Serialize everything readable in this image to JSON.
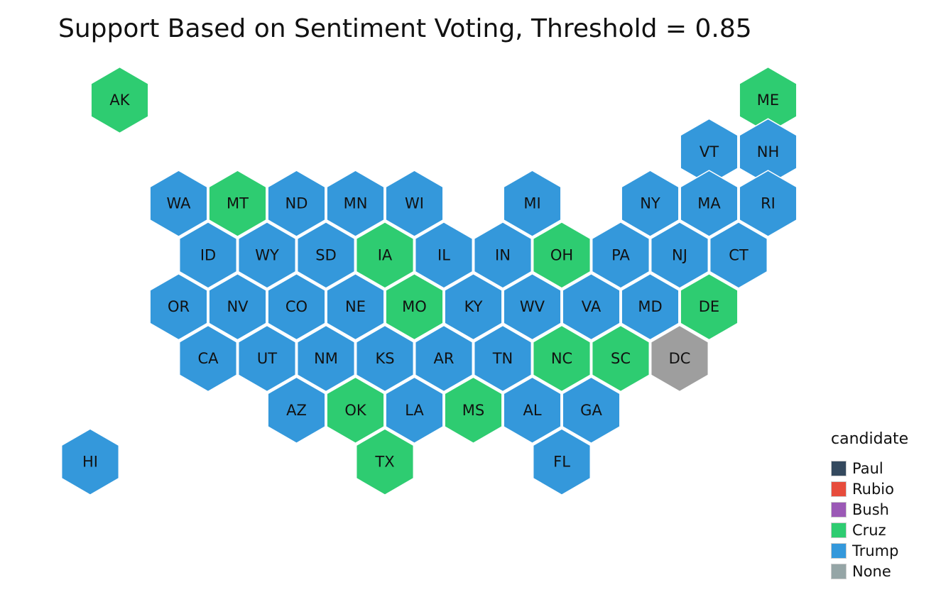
{
  "title": "Support Based on Sentiment Voting, Threshold = 0.85",
  "legend": {
    "title": "candidate",
    "items": [
      {
        "label": "Paul",
        "color": "#34495e"
      },
      {
        "label": "Rubio",
        "color": "#e74c3c"
      },
      {
        "label": "Bush",
        "color": "#9b59b6"
      },
      {
        "label": "Cruz",
        "color": "#2ecc71"
      },
      {
        "label": "Trump",
        "color": "#3498db"
      },
      {
        "label": "None",
        "color": "#95a5a6"
      }
    ]
  },
  "colors": {
    "Cruz": "#2ecc71",
    "Trump": "#3498db",
    "None": "#9e9e9e"
  },
  "states": [
    {
      "abbr": "AK",
      "candidate": "Cruz"
    },
    {
      "abbr": "ME",
      "candidate": "Cruz"
    },
    {
      "abbr": "VT",
      "candidate": "Trump"
    },
    {
      "abbr": "NH",
      "candidate": "Trump"
    },
    {
      "abbr": "WA",
      "candidate": "Trump"
    },
    {
      "abbr": "MT",
      "candidate": "Cruz"
    },
    {
      "abbr": "ND",
      "candidate": "Trump"
    },
    {
      "abbr": "MN",
      "candidate": "Trump"
    },
    {
      "abbr": "WI",
      "candidate": "Trump"
    },
    {
      "abbr": "MI",
      "candidate": "Trump"
    },
    {
      "abbr": "NY",
      "candidate": "Trump"
    },
    {
      "abbr": "MA",
      "candidate": "Trump"
    },
    {
      "abbr": "RI",
      "candidate": "Trump"
    },
    {
      "abbr": "ID",
      "candidate": "Trump"
    },
    {
      "abbr": "WY",
      "candidate": "Trump"
    },
    {
      "abbr": "SD",
      "candidate": "Trump"
    },
    {
      "abbr": "IA",
      "candidate": "Cruz"
    },
    {
      "abbr": "IL",
      "candidate": "Trump"
    },
    {
      "abbr": "IN",
      "candidate": "Trump"
    },
    {
      "abbr": "OH",
      "candidate": "Cruz"
    },
    {
      "abbr": "PA",
      "candidate": "Trump"
    },
    {
      "abbr": "NJ",
      "candidate": "Trump"
    },
    {
      "abbr": "CT",
      "candidate": "Trump"
    },
    {
      "abbr": "OR",
      "candidate": "Trump"
    },
    {
      "abbr": "NV",
      "candidate": "Trump"
    },
    {
      "abbr": "CO",
      "candidate": "Trump"
    },
    {
      "abbr": "NE",
      "candidate": "Trump"
    },
    {
      "abbr": "MO",
      "candidate": "Cruz"
    },
    {
      "abbr": "KY",
      "candidate": "Trump"
    },
    {
      "abbr": "WV",
      "candidate": "Trump"
    },
    {
      "abbr": "VA",
      "candidate": "Trump"
    },
    {
      "abbr": "MD",
      "candidate": "Trump"
    },
    {
      "abbr": "DE",
      "candidate": "Cruz"
    },
    {
      "abbr": "CA",
      "candidate": "Trump"
    },
    {
      "abbr": "UT",
      "candidate": "Trump"
    },
    {
      "abbr": "NM",
      "candidate": "Trump"
    },
    {
      "abbr": "KS",
      "candidate": "Trump"
    },
    {
      "abbr": "AR",
      "candidate": "Trump"
    },
    {
      "abbr": "TN",
      "candidate": "Trump"
    },
    {
      "abbr": "NC",
      "candidate": "Cruz"
    },
    {
      "abbr": "SC",
      "candidate": "Cruz"
    },
    {
      "abbr": "DC",
      "candidate": "None"
    },
    {
      "abbr": "AZ",
      "candidate": "Trump"
    },
    {
      "abbr": "OK",
      "candidate": "Cruz"
    },
    {
      "abbr": "LA",
      "candidate": "Trump"
    },
    {
      "abbr": "MS",
      "candidate": "Cruz"
    },
    {
      "abbr": "AL",
      "candidate": "Trump"
    },
    {
      "abbr": "GA",
      "candidate": "Trump"
    },
    {
      "abbr": "HI",
      "candidate": "Trump"
    },
    {
      "abbr": "TX",
      "candidate": "Cruz"
    },
    {
      "abbr": "FL",
      "candidate": "Trump"
    }
  ]
}
